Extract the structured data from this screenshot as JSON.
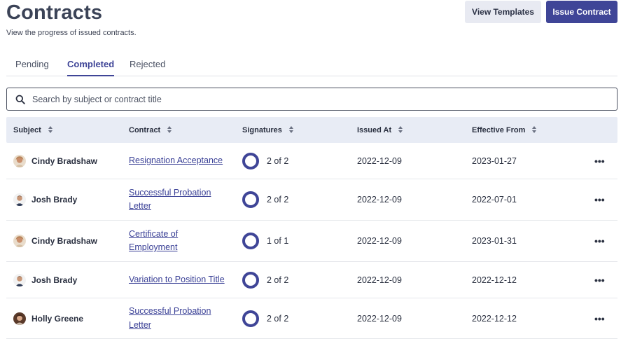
{
  "header": {
    "title": "Contracts",
    "subtitle": "View the progress of issued contracts.",
    "view_templates_label": "View Templates",
    "issue_contract_label": "Issue Contract"
  },
  "tabs": [
    {
      "label": "Pending",
      "active": false
    },
    {
      "label": "Completed",
      "active": true
    },
    {
      "label": "Rejected",
      "active": false
    }
  ],
  "search": {
    "placeholder": "Search by subject or contract title",
    "value": ""
  },
  "table": {
    "columns": [
      "Subject",
      "Contract",
      "Signatures",
      "Issued At",
      "Effective From"
    ],
    "rows": [
      {
        "subject": "Cindy Bradshaw",
        "avatar": "cindy",
        "contract_line1": "Resignation Acceptance",
        "contract_line2": "",
        "signatures": "2 of 2",
        "issued_at": "2022-12-09",
        "effective_from": "2023-01-27",
        "actions": "•••"
      },
      {
        "subject": "Josh Brady",
        "avatar": "josh",
        "contract_line1": "Successful Probation",
        "contract_line2": "Letter",
        "signatures": "2 of 2",
        "issued_at": "2022-12-09",
        "effective_from": "2022-07-01",
        "actions": "•••"
      },
      {
        "subject": "Cindy Bradshaw",
        "avatar": "cindy",
        "contract_line1": "Certificate of",
        "contract_line2": "Employment",
        "signatures": "1 of 1",
        "issued_at": "2022-12-09",
        "effective_from": "2023-01-31",
        "actions": "•••"
      },
      {
        "subject": "Josh Brady",
        "avatar": "josh",
        "contract_line1": "Variation to Position Title",
        "contract_line2": "",
        "signatures": "2 of 2",
        "issued_at": "2022-12-09",
        "effective_from": "2022-12-12",
        "actions": "•••"
      },
      {
        "subject": "Holly Greene",
        "avatar": "holly",
        "contract_line1": "Successful Probation",
        "contract_line2": "Letter",
        "signatures": "2 of 2",
        "issued_at": "2022-12-09",
        "effective_from": "2022-12-12",
        "actions": "•••"
      }
    ]
  },
  "colors": {
    "accent": "#3f4597",
    "header_bg": "#e8ecf5",
    "title": "#3b4357"
  }
}
